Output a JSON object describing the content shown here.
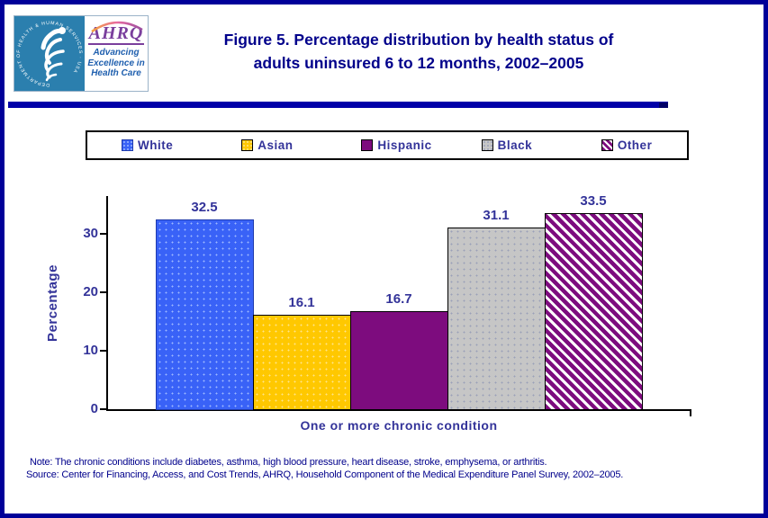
{
  "header": {
    "title_line1": "Figure 5. Percentage distribution by health status of",
    "title_line2": "adults uninsured 6 to 12 months, 2002–2005",
    "logo": {
      "org_abbr": "AHRQ",
      "tagline_line1": "Advancing",
      "tagline_line2": "Excellence in",
      "tagline_line3": "Health Care",
      "seal_text": "DEPARTMENT OF HEALTH & HUMAN SERVICES · USA"
    }
  },
  "chart_data": {
    "type": "bar",
    "title": "Figure 5. Percentage distribution by health status of adults uninsured 6 to 12 months, 2002–2005",
    "categories": [
      "White",
      "Asian",
      "Hispanic",
      "Black",
      "Other"
    ],
    "values": [
      32.5,
      16.1,
      16.7,
      31.1,
      33.5
    ],
    "value_labels": [
      "32.5",
      "16.1",
      "16.7",
      "31.1",
      "33.5"
    ],
    "xlabel": "One or more chronic condition",
    "ylabel": "Percentage",
    "ylim": [
      0,
      35
    ],
    "yticks": [
      0,
      10,
      20,
      30
    ],
    "grid": false,
    "legend_position": "top",
    "styles": [
      {
        "fill": "#3962f7",
        "texture": "dots",
        "dot": "#9db8ff",
        "border": "#1f3bad"
      },
      {
        "fill": "#ffc800",
        "texture": "dots",
        "dot": "#ffe48a",
        "border": "#000000"
      },
      {
        "fill": "#7d0c7e",
        "texture": "solid",
        "border": "#000000"
      },
      {
        "fill": "#c6c6c6",
        "texture": "dots",
        "dot": "#9aa0b8",
        "border": "#000000"
      },
      {
        "fill": "#7d0c7e",
        "texture": "hatch",
        "border": "#000000"
      }
    ]
  },
  "footer": {
    "note": "Note: The chronic conditions include diabetes, asthma, high blood pressure, heart disease, stroke, emphysema, or arthritis.",
    "source": "Source: Center for Financing, Access, and Cost Trends, AHRQ, Household Component of the Medical Expenditure Panel Survey, 2002–2005."
  },
  "colors": {
    "frame_navy": "#000099",
    "title_navy": "#00008b",
    "chart_text_navy": "#333399",
    "hatch_stripe": "#7d0c7e",
    "seal_teal": "#2b7fae",
    "ahrq_purple": "#7a3f9d",
    "tagline_blue": "#1f5fae"
  }
}
